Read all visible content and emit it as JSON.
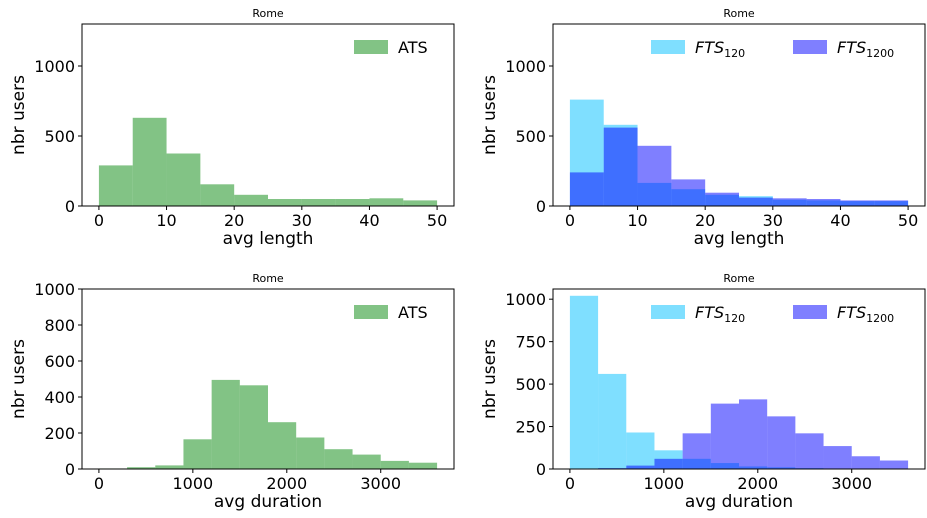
{
  "figure": {
    "panels_note": "",
    "colors": {
      "ats": "#2e9b33",
      "fts120": "#00bfff",
      "fts1200": "#0000ff",
      "overlap": "#1144ee"
    }
  },
  "chart_data": [
    {
      "type": "bar",
      "title": "Rome",
      "xlabel": "avg length",
      "ylabel": "nbr users",
      "xlim": [
        -2.5,
        52.5
      ],
      "ylim": [
        0,
        1300
      ],
      "xticks": [
        0,
        10,
        20,
        30,
        40,
        50
      ],
      "yticks": [
        0,
        500,
        1000
      ],
      "legend": "top-right",
      "bin_edges": [
        0,
        5,
        10,
        15,
        20,
        25,
        30,
        35,
        40,
        45,
        50
      ],
      "series": [
        {
          "name": "ATS",
          "color": "#2e9b33",
          "opacity": 0.6,
          "values": [
            290,
            630,
            375,
            155,
            80,
            50,
            50,
            50,
            55,
            40
          ]
        }
      ]
    },
    {
      "type": "bar",
      "title": "Rome",
      "xlabel": "avg length",
      "ylabel": "nbr users",
      "xlim": [
        -2.5,
        52.5
      ],
      "ylim": [
        0,
        1300
      ],
      "xticks": [
        0,
        10,
        20,
        30,
        40,
        50
      ],
      "yticks": [
        0,
        500,
        1000
      ],
      "legend": "top-right",
      "bin_edges": [
        0,
        5,
        10,
        15,
        20,
        25,
        30,
        35,
        40,
        45,
        50
      ],
      "series": [
        {
          "name": "FTS",
          "subscript": "120",
          "color": "#00bfff",
          "opacity": 0.5,
          "values": [
            760,
            580,
            165,
            120,
            80,
            70,
            45,
            40,
            35,
            35
          ]
        },
        {
          "name": "FTS",
          "subscript": "1200",
          "color": "#0000ff",
          "opacity": 0.5,
          "values": [
            240,
            560,
            430,
            190,
            95,
            60,
            55,
            50,
            40,
            40
          ]
        }
      ]
    },
    {
      "type": "bar",
      "title": "Rome",
      "xlabel": "avg duration",
      "ylabel": "nbr users",
      "xlim": [
        -180,
        3780
      ],
      "ylim": [
        0,
        1000
      ],
      "xticks": [
        0,
        1000,
        2000,
        3000
      ],
      "yticks": [
        0,
        200,
        400,
        600,
        800,
        1000
      ],
      "legend": "top-right",
      "bin_edges": [
        0,
        300,
        600,
        900,
        1200,
        1500,
        1800,
        2100,
        2400,
        2700,
        3000,
        3300,
        3600
      ],
      "series": [
        {
          "name": "ATS",
          "color": "#2e9b33",
          "opacity": 0.6,
          "values": [
            3,
            10,
            20,
            165,
            495,
            465,
            260,
            175,
            110,
            80,
            45,
            35
          ]
        }
      ]
    },
    {
      "type": "bar",
      "title": "Rome",
      "xlabel": "avg duration",
      "ylabel": "nbr users",
      "xlim": [
        -180,
        3780
      ],
      "ylim": [
        0,
        1060
      ],
      "xticks": [
        0,
        1000,
        2000,
        3000
      ],
      "yticks": [
        0,
        250,
        500,
        750,
        1000
      ],
      "legend": "top-right",
      "bin_edges": [
        0,
        300,
        600,
        900,
        1200,
        1500,
        1800,
        2100,
        2400,
        2700,
        3000,
        3300,
        3600
      ],
      "series": [
        {
          "name": "FTS",
          "subscript": "120",
          "color": "#00bfff",
          "opacity": 0.5,
          "values": [
            1020,
            560,
            215,
            110,
            60,
            35,
            15,
            10,
            5,
            3,
            2,
            1
          ]
        },
        {
          "name": "FTS",
          "subscript": "1200",
          "color": "#0000ff",
          "opacity": 0.5,
          "values": [
            0,
            5,
            20,
            60,
            210,
            385,
            410,
            310,
            210,
            135,
            75,
            50
          ]
        }
      ]
    }
  ]
}
